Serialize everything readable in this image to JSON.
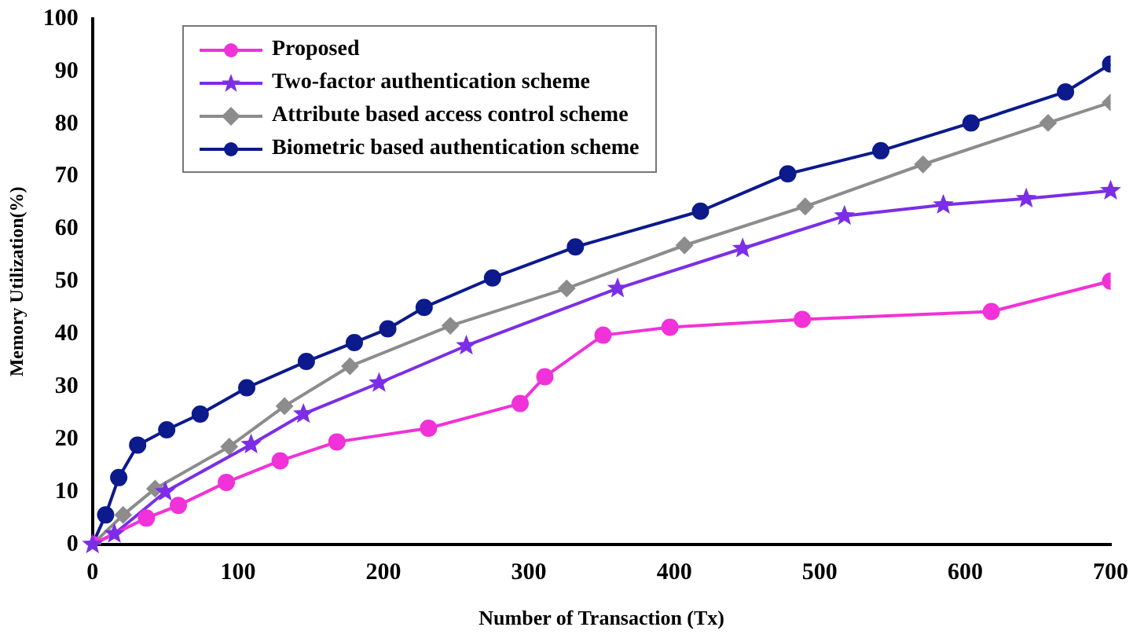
{
  "chart_data": {
    "type": "line",
    "xlabel": "Number of Transaction (Tx)",
    "ylabel": "Memory Utilization(%)",
    "xlim": [
      0,
      700
    ],
    "xticks": [
      0,
      100,
      200,
      300,
      400,
      500,
      600,
      700
    ],
    "ylim": [
      0,
      100
    ],
    "yticks": [
      0,
      10,
      20,
      30,
      40,
      50,
      60,
      70,
      80,
      90,
      100
    ],
    "grid": false,
    "legend": "top left",
    "line_style": "solid",
    "series": [
      {
        "name": "Proposed",
        "color": "#f032d8",
        "marker": "circle",
        "x": [
          0,
          37,
          59,
          92,
          129,
          168,
          231,
          294,
          311,
          351,
          397,
          488,
          618,
          700
        ],
        "values": [
          0,
          5,
          7.4,
          11.8,
          15.9,
          19.5,
          22.1,
          26.8,
          31.9,
          39.8,
          41.3,
          42.8,
          44.3,
          50.1
        ]
      },
      {
        "name": "Two-factor authentication scheme",
        "color": "#7b2ee6",
        "marker": "star",
        "x": [
          0,
          15,
          50,
          109,
          145,
          197,
          257,
          361,
          447,
          517,
          585,
          642,
          700
        ],
        "values": [
          0,
          2,
          10,
          19,
          24.8,
          30.7,
          37.8,
          48.7,
          56.3,
          62.5,
          64.6,
          65.8,
          67.3
        ]
      },
      {
        "name": "Attribute based access control scheme",
        "color": "#8c8c8c",
        "marker": "diamond",
        "x": [
          0,
          21,
          43,
          94,
          132,
          177,
          246,
          326,
          407,
          490,
          571,
          657,
          700
        ],
        "values": [
          0,
          5.6,
          10.6,
          18.6,
          26.3,
          33.9,
          41.6,
          48.7,
          56.9,
          64.3,
          72.3,
          80.2,
          84.1
        ]
      },
      {
        "name": "Biometric based authentication scheme",
        "color": "#0c1a8c",
        "marker": "circle",
        "x": [
          0,
          9,
          18,
          31,
          51,
          74,
          106,
          147,
          180,
          203,
          228,
          275,
          332,
          418,
          478,
          542,
          604,
          669,
          700
        ],
        "values": [
          0,
          5.6,
          12.7,
          18.9,
          21.8,
          24.8,
          29.8,
          34.8,
          38.4,
          41,
          45.1,
          50.7,
          56.6,
          63.4,
          70.5,
          74.9,
          80.2,
          86.1,
          91.4
        ]
      }
    ]
  }
}
